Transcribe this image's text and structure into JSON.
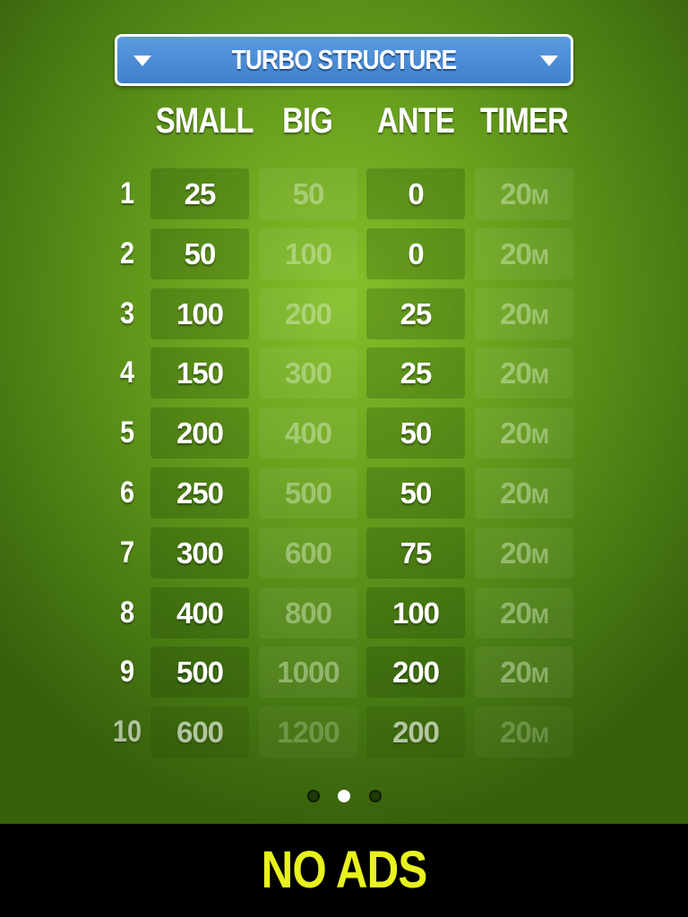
{
  "structure_selector": {
    "label": "TURBO STRUCTURE",
    "icon_left": "triangle-down-icon",
    "icon_right": "triangle-down-icon"
  },
  "headers": {
    "small": "SMALL",
    "big": "BIG",
    "ante": "ANTE",
    "timer": "TIMER"
  },
  "levels": [
    {
      "level": "1",
      "small": "25",
      "big": "50",
      "ante": "0",
      "timer": "20",
      "unit": "M"
    },
    {
      "level": "2",
      "small": "50",
      "big": "100",
      "ante": "0",
      "timer": "20",
      "unit": "M"
    },
    {
      "level": "3",
      "small": "100",
      "big": "200",
      "ante": "25",
      "timer": "20",
      "unit": "M"
    },
    {
      "level": "4",
      "small": "150",
      "big": "300",
      "ante": "25",
      "timer": "20",
      "unit": "M"
    },
    {
      "level": "5",
      "small": "200",
      "big": "400",
      "ante": "50",
      "timer": "20",
      "unit": "M"
    },
    {
      "level": "6",
      "small": "250",
      "big": "500",
      "ante": "50",
      "timer": "20",
      "unit": "M"
    },
    {
      "level": "7",
      "small": "300",
      "big": "600",
      "ante": "75",
      "timer": "20",
      "unit": "M"
    },
    {
      "level": "8",
      "small": "400",
      "big": "800",
      "ante": "100",
      "timer": "20",
      "unit": "M"
    },
    {
      "level": "9",
      "small": "500",
      "big": "1000",
      "ante": "200",
      "timer": "20",
      "unit": "M"
    },
    {
      "level": "10",
      "small": "600",
      "big": "1200",
      "ante": "200",
      "timer": "20",
      "unit": "M"
    }
  ],
  "pager": {
    "pages": 3,
    "current": 2
  },
  "banner": {
    "label": "NO ADS",
    "color": "#e8f21c"
  }
}
